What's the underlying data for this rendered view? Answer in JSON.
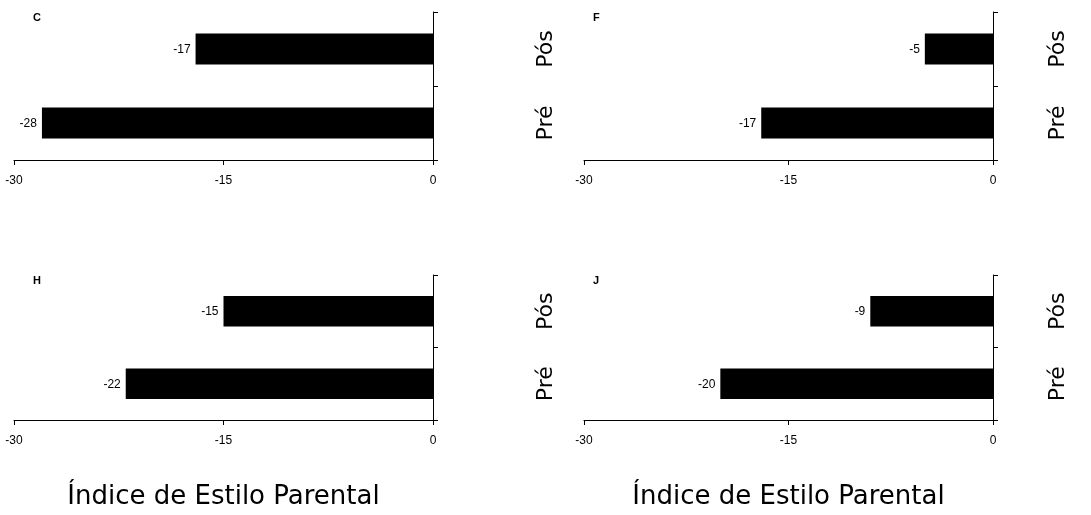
{
  "chart_data": [
    {
      "type": "bar",
      "orientation": "horizontal",
      "title": "C",
      "categories": [
        "Pós",
        "Pré"
      ],
      "values": [
        -17,
        -28
      ],
      "color": "#000000",
      "xlim": [
        -30,
        0
      ],
      "xticks": [
        -30,
        -15,
        0
      ],
      "data_labels": true,
      "grid": false
    },
    {
      "type": "bar",
      "orientation": "horizontal",
      "title": "F",
      "categories": [
        "Pós",
        "Pré"
      ],
      "values": [
        -5,
        -17
      ],
      "color": "#000000",
      "xlim": [
        -30,
        0
      ],
      "xticks": [
        -30,
        -15,
        0
      ],
      "data_labels": true,
      "grid": false
    },
    {
      "type": "bar",
      "orientation": "horizontal",
      "title": "H",
      "xlabel": "Índice de Estilo Parental",
      "categories": [
        "Pós",
        "Pré"
      ],
      "values": [
        -15,
        -22
      ],
      "color": "#000000",
      "xlim": [
        -30,
        0
      ],
      "xticks": [
        -30,
        -15,
        0
      ],
      "data_labels": true,
      "grid": false
    },
    {
      "type": "bar",
      "orientation": "horizontal",
      "title": "J",
      "xlabel": "Índice de Estilo Parental",
      "categories": [
        "Pós",
        "Pré"
      ],
      "values": [
        -9,
        -20
      ],
      "color": "#000000",
      "xlim": [
        -30,
        0
      ],
      "xticks": [
        -30,
        -15,
        0
      ],
      "data_labels": true,
      "grid": false
    }
  ]
}
